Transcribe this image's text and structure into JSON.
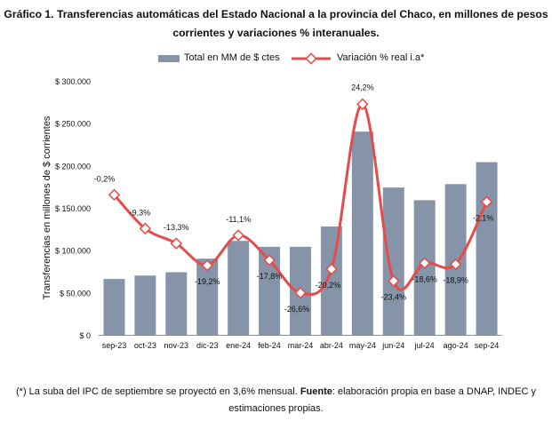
{
  "title_line1": "Gráfico 1. Transferencias automáticas del Estado Nacional a la provincia del Chaco, en millones de pesos",
  "title_line2": "corrientes y variaciones % interanuales.",
  "legend": {
    "bar_label": "Total en MM de $ ctes",
    "line_label": "Variación % real i.a*"
  },
  "footnote": {
    "text1": "(*) La suba del IPC de septiembre se proyectó en 3,6% mensual. ",
    "source_label": "Fuente",
    "text2": ": elaboración propia en base a DNAP, INDEC y",
    "text3": "estimaciones propias."
  },
  "colors": {
    "bar": "#8594a9",
    "line": "#e64b4b",
    "marker_fill": "#ffffff"
  },
  "chart_data": {
    "type": "bar",
    "title": "Gráfico 1. Transferencias automáticas del Estado Nacional a la provincia del Chaco, en millones de pesos corrientes y variaciones % interanuales.",
    "ylabel": "Transferencias en millones de $ corrientes",
    "ylim": [
      0,
      300000
    ],
    "yticks": [
      0,
      50000,
      100000,
      150000,
      200000,
      250000,
      300000
    ],
    "ytick_labels": [
      "$ 0",
      "$ 50.000",
      "$ 100.000",
      "$ 150.000",
      "$ 200.000",
      "$ 250.000",
      "$ 300.000"
    ],
    "categories": [
      "sep-23",
      "oct-23",
      "nov-23",
      "dic-23",
      "ene-24",
      "feb-24",
      "mar-24",
      "abr-24",
      "may-24",
      "jun-24",
      "jul-24",
      "ago-24",
      "sep-24"
    ],
    "series": [
      {
        "name": "Total en MM de $ ctes",
        "type": "bar",
        "values": [
          66000,
          70000,
          74000,
          90000,
          111000,
          104000,
          104000,
          128000,
          240000,
          174000,
          159000,
          178000,
          204000
        ]
      },
      {
        "name": "Variación % real i.a*",
        "type": "line",
        "smooth": true,
        "values": [
          -0.2,
          -9.3,
          -13.3,
          -19.2,
          -11.1,
          -17.8,
          -26.6,
          -20.2,
          24.2,
          -23.4,
          -18.6,
          -18.9,
          -2.1
        ],
        "labels": [
          "-0,2%",
          "-9,3%",
          "-13,3%",
          "-19,2%",
          "-11,1%",
          "-17,8%",
          "-26,6%",
          "-20,2%",
          "24,2%",
          "-23,4%",
          "-18,6%",
          "-18,9%",
          "-2,1%"
        ]
      }
    ],
    "legend_position": "top",
    "grid": false
  }
}
